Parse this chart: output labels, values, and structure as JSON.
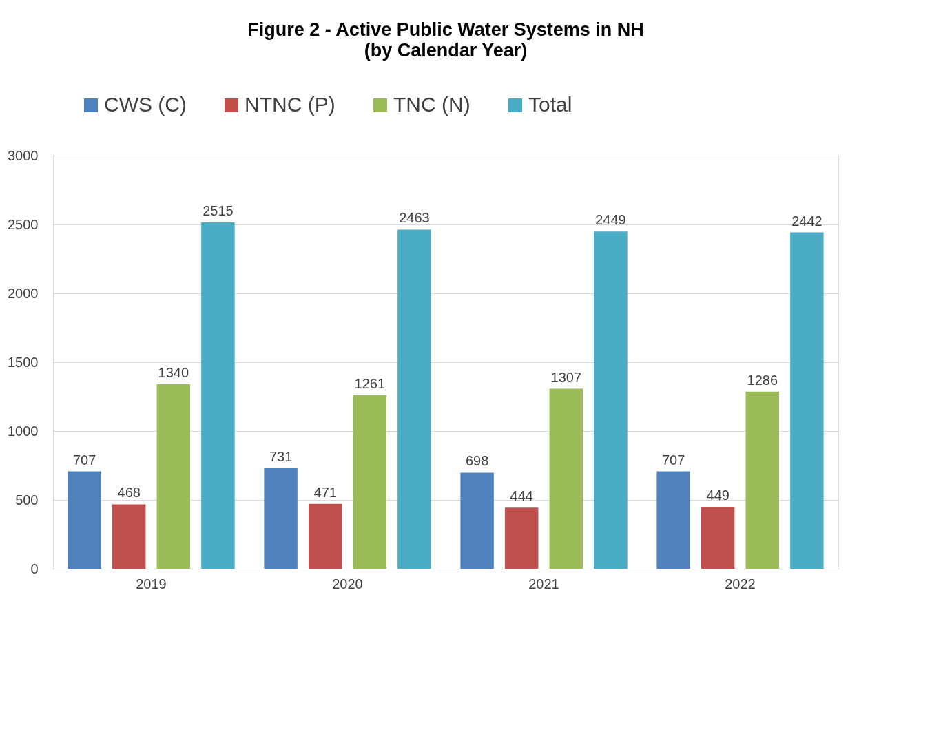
{
  "chart_data": {
    "type": "bar",
    "title": "Figure 2 - Active Public Water Systems in NH",
    "subtitle": "(by Calendar Year)",
    "categories": [
      "2019",
      "2020",
      "2021",
      "2022"
    ],
    "series": [
      {
        "name": "CWS (C)",
        "color": "#4f81bd",
        "values": [
          707,
          731,
          698,
          707
        ]
      },
      {
        "name": "NTNC (P)",
        "color": "#c0504d",
        "values": [
          468,
          471,
          444,
          449
        ]
      },
      {
        "name": "TNC (N)",
        "color": "#9bbb59",
        "values": [
          1340,
          1261,
          1307,
          1286
        ]
      },
      {
        "name": "Total",
        "color": "#4bacc6",
        "values": [
          2515,
          2463,
          2449,
          2442
        ]
      }
    ],
    "ylim": [
      0,
      3000
    ],
    "yticks": [
      0,
      500,
      1000,
      1500,
      2000,
      2500,
      3000
    ],
    "grid": "y",
    "legend": "top",
    "data_labels": true
  }
}
